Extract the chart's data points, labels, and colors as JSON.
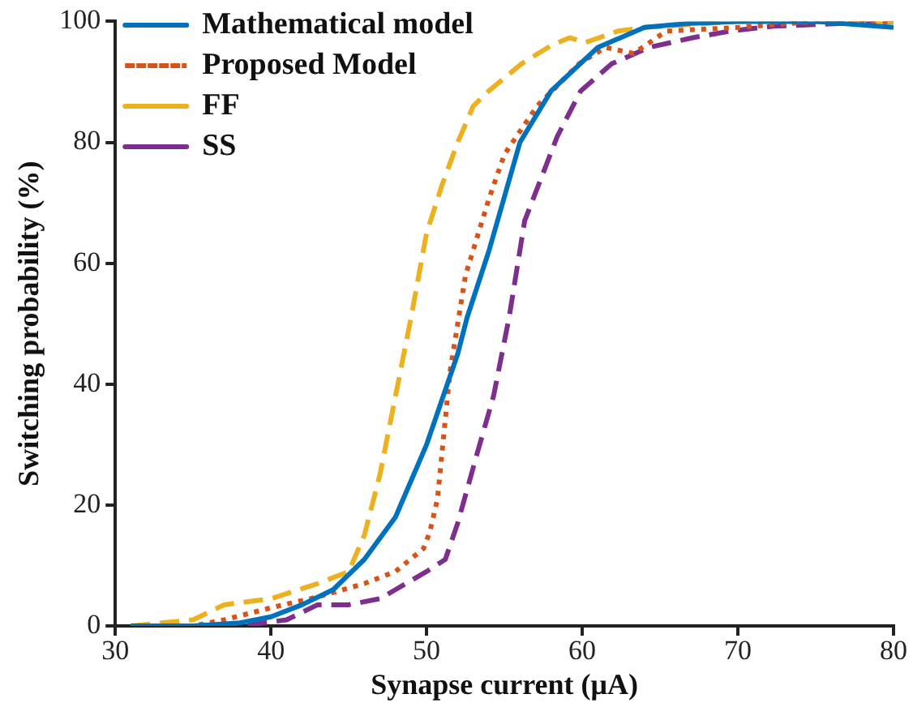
{
  "chart_data": {
    "type": "line",
    "xlabel": "Synapse current (μA)",
    "ylabel": "Switching probability (%)",
    "xlim": [
      30,
      80
    ],
    "xticks": [
      30,
      40,
      50,
      60,
      70,
      80
    ],
    "ylim": [
      0,
      100
    ],
    "yticks": [
      0,
      20,
      40,
      60,
      80,
      100
    ],
    "grid": false,
    "legend": "top left",
    "marker": "none",
    "series": [
      {
        "name": "Mathematical model",
        "color": "#0072bd",
        "line_style": "solid",
        "x": [
          31,
          35,
          38,
          40,
          42,
          44,
          45,
          46,
          48,
          50,
          52,
          52.6,
          54,
          56,
          58,
          61,
          64,
          67,
          70,
          75,
          80
        ],
        "values": [
          0,
          0,
          0.5,
          1.5,
          3.5,
          6,
          8.5,
          11,
          18,
          30,
          45,
          51,
          62,
          80,
          88.5,
          95.7,
          99,
          99.7,
          100,
          100,
          99
        ]
      },
      {
        "name": "Proposed Model",
        "color": "#d95319",
        "line_style": "dotted",
        "x": [
          31,
          35,
          37,
          40,
          43,
          46,
          48,
          49.8,
          50.2,
          50.7,
          51.5,
          52.5,
          54,
          55,
          57.1,
          59.8,
          61.5,
          63.3,
          65.4,
          70,
          75,
          80
        ],
        "values": [
          0,
          0,
          1,
          3,
          4.8,
          7,
          9,
          12.8,
          15.5,
          21,
          42,
          58,
          70.6,
          78,
          86,
          93,
          95.7,
          94.7,
          98.4,
          99,
          100,
          100
        ]
      },
      {
        "name": "FF",
        "color": "#edb120",
        "line_style": "dashed",
        "x": [
          31,
          35,
          37,
          40,
          43,
          45,
          46,
          47,
          48,
          49,
          50,
          51,
          52,
          53,
          54,
          56.1,
          58,
          59.2,
          60.2,
          62.3,
          64,
          70,
          80
        ],
        "values": [
          0,
          1,
          3.5,
          4.5,
          7,
          9,
          15,
          25,
          38,
          51,
          65,
          73,
          80,
          86,
          88.5,
          93,
          96,
          97.3,
          96.5,
          98.4,
          99,
          100,
          100
        ]
      },
      {
        "name": "SS",
        "color": "#7e2f8e",
        "line_style": "dashed",
        "x": [
          31,
          38,
          41,
          43,
          45,
          47,
          48,
          50,
          51.2,
          52,
          53.3,
          54.3,
          55.3,
          56.3,
          58.4,
          59.9,
          61.9,
          64.3,
          67.1,
          69.5,
          72.3,
          80
        ],
        "values": [
          0,
          0,
          1,
          3.5,
          3.5,
          4.5,
          6,
          9,
          11,
          17,
          29,
          38,
          51,
          67,
          81,
          88.5,
          93,
          95.7,
          97.3,
          98.4,
          99.2,
          100
        ]
      }
    ]
  }
}
